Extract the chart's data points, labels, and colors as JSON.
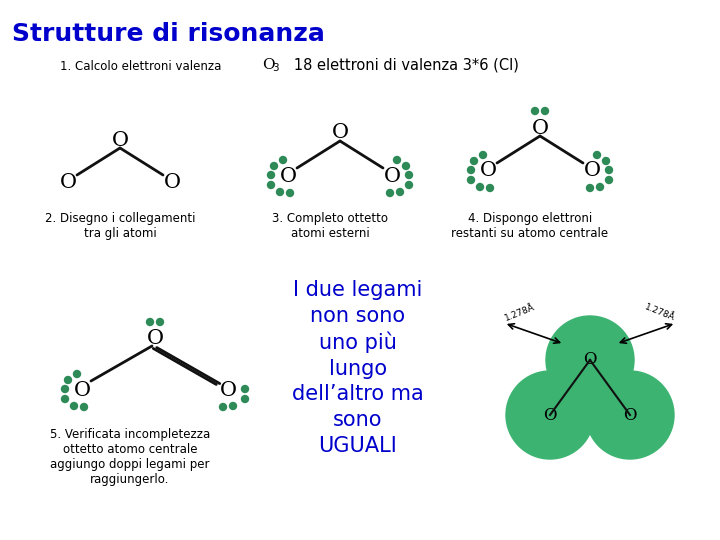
{
  "title": "Strutture di risonanza",
  "title_color": "#0000CC",
  "title_fontsize": 18,
  "bg_color": "#FFFFFF",
  "dot_color": "#2E8B57",
  "bond_color": "#111111",
  "label1": "1. Calcolo elettroni valenza",
  "label2": "2. Disegno i collegamenti\ntra gli atomi",
  "label3": "3. Completo ottetto\natomi esterni",
  "label4": "4. Dispongo elettroni\nrestanti su atomo centrale",
  "label5": "5. Verificata incompletezza\nottetto atomo centrale\naggiungo doppi legami per\nraggiungerlo.",
  "distance_label": "1.278Å",
  "green_circle_color": "#3CB371",
  "text_color": "#000000",
  "resonance_text_color": "#0000CC",
  "resonance_text": "I due legami\nnon sono\nuno più\nlungo\ndell’altro ma\nsono\nUGUALI"
}
